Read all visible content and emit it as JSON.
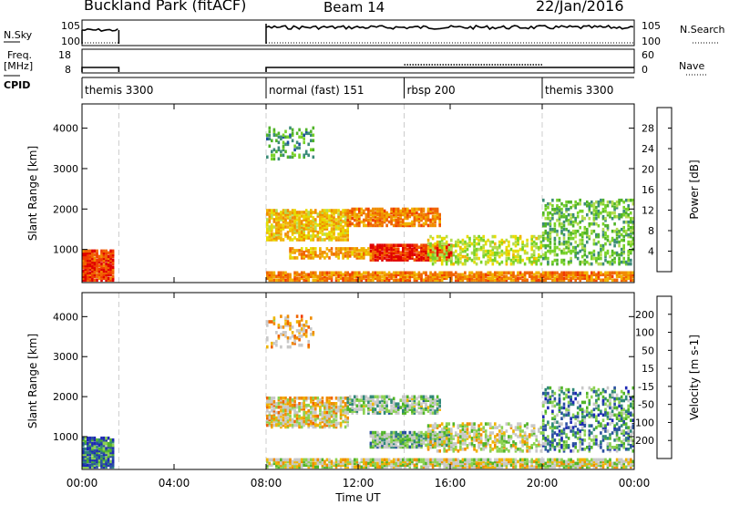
{
  "header": {
    "station": "Buckland Park (fitACF)",
    "beam": "Beam 14",
    "date": "22/Jan/2016"
  },
  "left_labels": {
    "nsky": "N.Sky",
    "freq": "Freq.",
    "mhz": "[MHz]",
    "cpid": "CPID"
  },
  "right_labels": {
    "nsearch": "N.Search",
    "nave": "Nave"
  },
  "top_ticks": {
    "noise_top": "10^5",
    "noise_bottom": "10^0",
    "freq_top": "18",
    "freq_bottom": "8",
    "nave_top": "60",
    "nave_bottom": "0"
  },
  "programs": [
    {
      "name": "themis 3300",
      "start_hour": 0
    },
    {
      "name": "normal (fast) 151",
      "start_hour": 8
    },
    {
      "name": "rbsp 200",
      "start_hour": 14
    },
    {
      "name": "themis 3300",
      "start_hour": 20
    }
  ],
  "x_axis": {
    "label": "Time UT",
    "ticks": [
      "00:00",
      "04:00",
      "08:00",
      "12:00",
      "16:00",
      "20:00",
      "00:00"
    ],
    "tick_hours": [
      0,
      4,
      8,
      12,
      16,
      20,
      24
    ]
  },
  "y_axis": {
    "label": "Slant Range [km]",
    "ticks": [
      "1000",
      "2000",
      "3000",
      "4000"
    ],
    "tick_values": [
      1000,
      2000,
      3000,
      4000
    ],
    "range": [
      180,
      4600
    ]
  },
  "colors": {
    "power_scale": [
      "#0000f0",
      "#1c50a0",
      "#3c8c78",
      "#50b428",
      "#78d228",
      "#b4dc50",
      "#e6dc00",
      "#f0b400",
      "#f08c00",
      "#f06400",
      "#f03c00",
      "#e00000"
    ],
    "velocity_scale": [
      "#1e28b4",
      "#2a50a0",
      "#308878",
      "#50b428",
      "#8cd250",
      "#c8c8c8",
      "#c8c8c8",
      "#f0b400",
      "#f08c00",
      "#f06400",
      "#f03c00",
      "#e00000"
    ]
  },
  "power_colorbar": {
    "label": "Power [dB]",
    "ticks": [
      "4",
      "8",
      "12",
      "16",
      "20",
      "24",
      "28"
    ]
  },
  "velocity_colorbar": {
    "label": "Velocity [m s-1]",
    "ticks": [
      "-200",
      "-100",
      "-50",
      "-15",
      "15",
      "50",
      "100",
      "200"
    ]
  },
  "chart_data": [
    {
      "type": "heatmap",
      "panel": "power",
      "title": "Buckland Park (fitACF) Beam 14 22/Jan/2016",
      "xlabel": "Time UT",
      "ylabel": "Slant Range [km]",
      "xlim_hours": [
        0,
        24
      ],
      "ylim": [
        180,
        4600
      ],
      "colorbar": "Power [dB]",
      "colorbar_range": [
        0,
        30
      ],
      "echo_regions": [
        {
          "t0": 0.0,
          "t1": 1.4,
          "r0": 200,
          "r1": 950,
          "value": 26,
          "density": 0.9
        },
        {
          "t0": 8.0,
          "t1": 24.0,
          "r0": 200,
          "r1": 420,
          "value": 22,
          "density": 0.8
        },
        {
          "t0": 8.0,
          "t1": 11.5,
          "r0": 1200,
          "r1": 1950,
          "value": 18,
          "density": 0.7
        },
        {
          "t0": 11.5,
          "t1": 15.5,
          "r0": 1550,
          "r1": 2000,
          "value": 22,
          "density": 0.7
        },
        {
          "t0": 12.5,
          "t1": 16.0,
          "r0": 700,
          "r1": 1100,
          "value": 27,
          "density": 0.85
        },
        {
          "t0": 9.0,
          "t1": 12.5,
          "r0": 750,
          "r1": 1000,
          "value": 20,
          "density": 0.6
        },
        {
          "t0": 15.0,
          "t1": 20.0,
          "r0": 600,
          "r1": 1300,
          "value": 14,
          "density": 0.4
        },
        {
          "t0": 20.0,
          "t1": 24.0,
          "r0": 600,
          "r1": 2200,
          "value": 10,
          "density": 0.35
        },
        {
          "t0": 8.0,
          "t1": 10.0,
          "r0": 3200,
          "r1": 4000,
          "value": 8,
          "density": 0.25
        }
      ]
    },
    {
      "type": "heatmap",
      "panel": "velocity",
      "xlabel": "Time UT",
      "ylabel": "Slant Range [km]",
      "xlim_hours": [
        0,
        24
      ],
      "ylim": [
        180,
        4600
      ],
      "colorbar": "Velocity [m s-1]",
      "colorbar_range": [
        -250,
        250
      ],
      "echo_regions": [
        {
          "t0": 0.0,
          "t1": 1.4,
          "r0": 200,
          "r1": 950,
          "value": -150,
          "density": 0.85
        },
        {
          "t0": 8.0,
          "t1": 24.0,
          "r0": 200,
          "r1": 420,
          "value": 0,
          "density": 0.8
        },
        {
          "t0": 8.0,
          "t1": 11.5,
          "r0": 1200,
          "r1": 1950,
          "value": 30,
          "density": 0.65
        },
        {
          "t0": 11.5,
          "t1": 15.5,
          "r0": 1550,
          "r1": 2000,
          "value": -60,
          "density": 0.6
        },
        {
          "t0": 12.5,
          "t1": 16.0,
          "r0": 700,
          "r1": 1100,
          "value": -70,
          "density": 0.8
        },
        {
          "t0": 15.0,
          "t1": 20.0,
          "r0": 600,
          "r1": 1300,
          "value": 0,
          "density": 0.4
        },
        {
          "t0": 20.0,
          "t1": 24.0,
          "r0": 600,
          "r1": 2200,
          "value": -120,
          "density": 0.35
        },
        {
          "t0": 8.0,
          "t1": 10.0,
          "r0": 3200,
          "r1": 4000,
          "value": 60,
          "density": 0.25
        }
      ]
    }
  ]
}
